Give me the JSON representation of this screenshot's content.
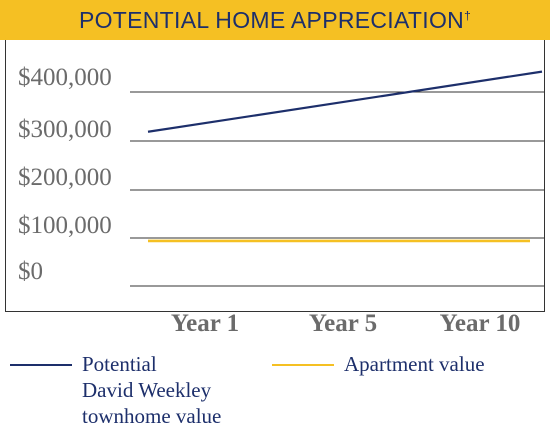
{
  "header": {
    "title": "POTENTIAL HOME APPRECIATION",
    "title_mark": "†"
  },
  "chart_data": {
    "type": "line",
    "title": "POTENTIAL HOME APPRECIATION†",
    "categories": [
      "Year 1",
      "Year 5",
      "Year 10"
    ],
    "y_ticks": [
      "$400,000",
      "$300,000",
      "$200,000",
      "$100,000",
      "$0"
    ],
    "ylim": [
      0,
      400000
    ],
    "grid": true,
    "legend_position": "bottom",
    "series": [
      {
        "name": "Potential David Weekley townhome value",
        "color": "#1d2f6b",
        "values": [
          318000,
          376000,
          442000
        ]
      },
      {
        "name": "Apartment value",
        "color": "#f5c023",
        "values": [
          93000,
          93000,
          93000
        ]
      }
    ]
  },
  "legend": {
    "items": [
      {
        "label": "Potential\nDavid Weekley\ntownhome value",
        "color": "#1d2f6b"
      },
      {
        "label": "Apartment value",
        "color": "#f5c023"
      }
    ]
  }
}
